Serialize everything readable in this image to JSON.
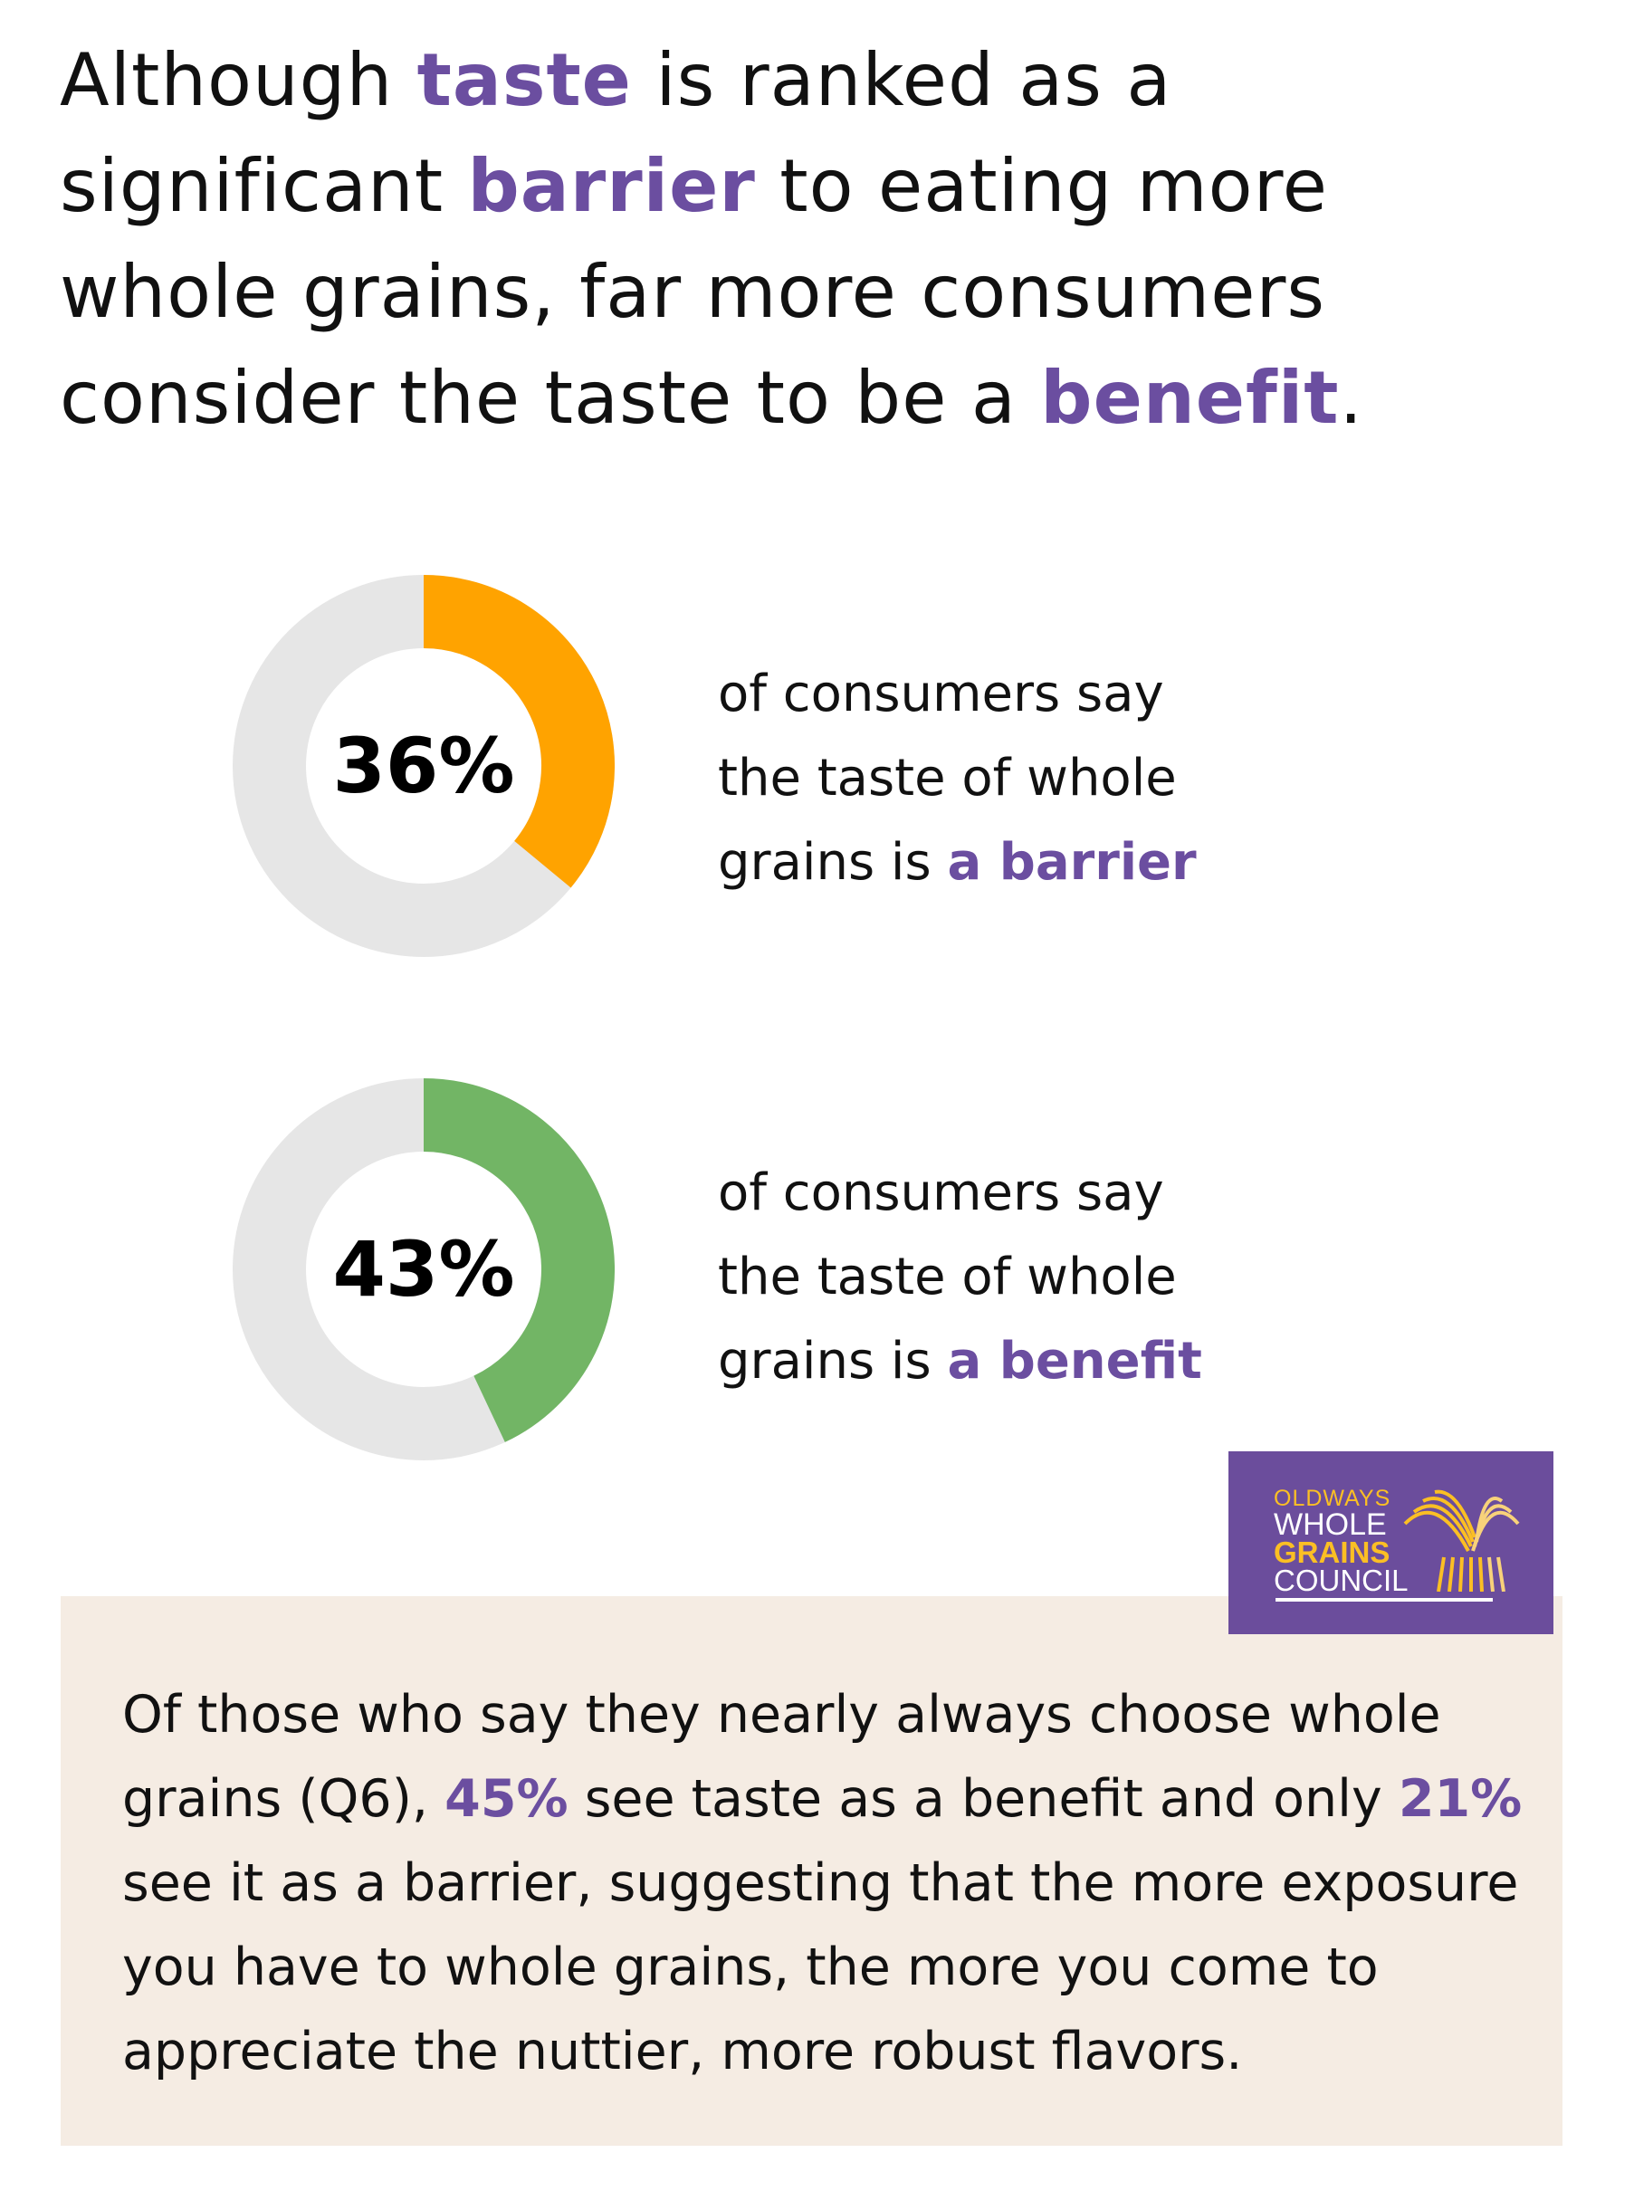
{
  "headline": {
    "lines": [
      [
        {
          "t": "Although ",
          "h": false
        },
        {
          "t": "taste",
          "h": true
        },
        {
          "t": " is ranked as a",
          "h": false
        }
      ],
      [
        {
          "t": "significant ",
          "h": false
        },
        {
          "t": "barrier",
          "h": true
        },
        {
          "t": " to eating more",
          "h": false
        }
      ],
      [
        {
          "t": "whole grains, far more consumers",
          "h": false
        }
      ],
      [
        {
          "t": "consider the taste to be a ",
          "h": false
        },
        {
          "t": "benefit",
          "h": true
        },
        {
          "t": ".",
          "h": false
        }
      ]
    ]
  },
  "chart_data": [
    {
      "type": "pie",
      "variant": "donut",
      "value": 36,
      "label": "36%",
      "color": "#ffa300",
      "track_color": "#e6e6e6",
      "description": {
        "line1": "of consumers say",
        "line2": "the taste of whole",
        "line3_prefix": "grains is ",
        "line3_highlight": "a barrier"
      }
    },
    {
      "type": "pie",
      "variant": "donut",
      "value": 43,
      "label": "43%",
      "color": "#72b565",
      "track_color": "#e6e6e6",
      "description": {
        "line1": "of consumers say",
        "line2": "the taste of whole",
        "line3_prefix": "grains is ",
        "line3_highlight": "a benefit"
      }
    }
  ],
  "note": {
    "segments": [
      {
        "t": "Of those who say they nearly always choose whole grains (Q6), ",
        "h": false
      },
      {
        "t": "45%",
        "h": true
      },
      {
        "t": " see taste as a benefit and only ",
        "h": false
      },
      {
        "t": "21%",
        "h": true
      },
      {
        "t": " see it as a barrier, suggesting that the more exposure you have to whole grains, the more you come to appreciate the nuttier, more robust flavors.",
        "h": false
      }
    ]
  },
  "logo": {
    "line1": "OLDWAYS",
    "line2": "WHOLE",
    "line3": "GRAINS",
    "line4": "COUNCIL"
  },
  "colors": {
    "accent": "#6b4ea0",
    "note_bg": "#f5ece3",
    "logo_bg": "#6b4d9c",
    "logo_gold": "#fbbf24"
  }
}
